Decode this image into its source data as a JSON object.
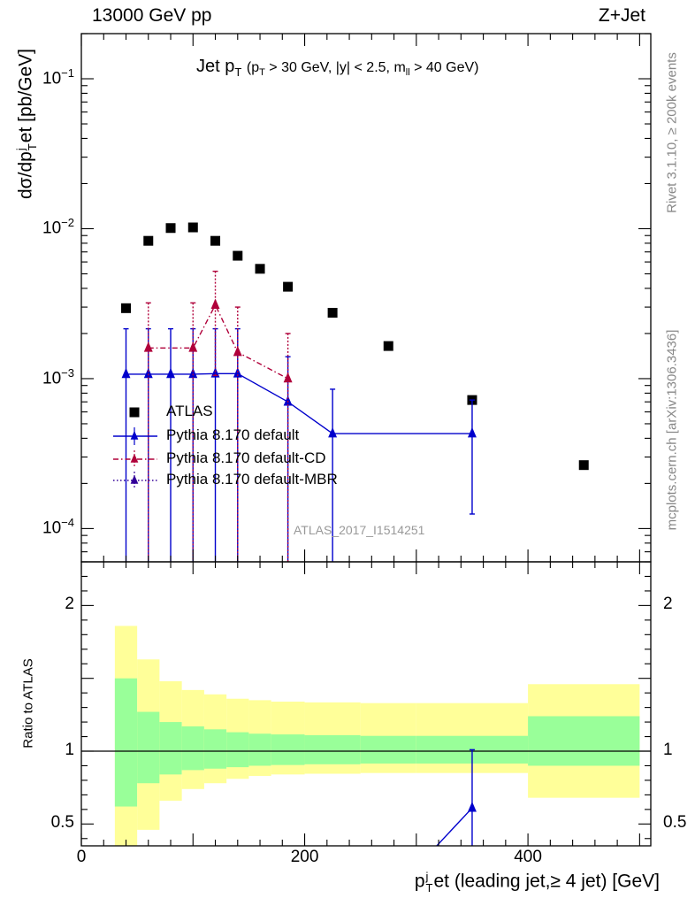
{
  "header": {
    "left": "13000 GeV pp",
    "right": "Z+Jet"
  },
  "side_labels": {
    "rivet": "Rivet 3.1.10, ≥ 200k events",
    "mcplots": "mcplots.cern.ch [arXiv:1306.3436]"
  },
  "plot_title": {
    "main": "Jet p",
    "main_sub": "T",
    "cuts_open": "(p",
    "cuts_sub1": "T",
    "cuts_mid": " > 30 GeV, |y| < 2.5, m",
    "cuts_sub2": "ll",
    "cuts_close": " > 40 GeV)"
  },
  "watermark": "ATLAS_2017_I1514251",
  "colors": {
    "data": "#000000",
    "default": "#0000cc",
    "default_cd": "#b0003a",
    "default_mbr": "#330099",
    "band_inner": "#99ff99",
    "band_outer": "#ffff99"
  },
  "chart_data": [
    {
      "type": "scatter",
      "panel": "main",
      "yscale": "log",
      "ylim": [
        6e-05,
        0.2
      ],
      "xlim": [
        0,
        510
      ],
      "ylabel": "dσ/dp",
      "ylabel_sub": "T",
      "ylabel_sup": "j",
      "ylabel_rest": "et [pb/GeV]",
      "ytick_labels": [
        {
          "base": "10",
          "exp": "−1",
          "value": 0.1
        },
        {
          "base": "10",
          "exp": "−2",
          "value": 0.01
        },
        {
          "base": "10",
          "exp": "−3",
          "value": 0.001
        },
        {
          "base": "10",
          "exp": "−4",
          "value": 0.0001
        }
      ],
      "legend_position": "middle-left",
      "series": [
        {
          "name": "ATLAS",
          "marker": "square",
          "x": [
            40,
            60,
            80,
            100,
            120,
            140,
            160,
            185,
            225,
            275,
            350,
            450
          ],
          "y": [
            0.00295,
            0.0083,
            0.0101,
            0.0102,
            0.0083,
            0.0066,
            0.0054,
            0.0041,
            0.00275,
            0.00165,
            0.00072,
            0.000265
          ]
        },
        {
          "name": "Pythia 8.170 default",
          "marker": "triangle",
          "line": "solid",
          "x": [
            40,
            60,
            80,
            100,
            120,
            140,
            185,
            225,
            350
          ],
          "y": [
            0.00107,
            0.00107,
            0.00107,
            0.00107,
            0.00108,
            0.00108,
            0.0007,
            0.00043,
            0.00043
          ],
          "yerr_high": [
            0.00215,
            0.00215,
            0.00215,
            0.00215,
            0.00215,
            0.00215,
            0.0014,
            0.00085,
            0.00072
          ],
          "yerr_low": [
            1e-05,
            1e-05,
            1e-05,
            1e-05,
            1e-05,
            1e-05,
            1e-05,
            1e-05,
            0.000125
          ]
        },
        {
          "name": "Pythia 8.170 default-CD",
          "marker": "triangle",
          "line": "dashdot",
          "x": [
            60,
            100,
            120,
            140,
            185
          ],
          "y": [
            0.0016,
            0.0016,
            0.0031,
            0.0015,
            0.001
          ],
          "yerr_high": [
            0.0032,
            0.0032,
            0.0052,
            0.003,
            0.002
          ],
          "yerr_low": [
            1e-05,
            1e-05,
            0.00105,
            1e-05,
            1e-05
          ]
        },
        {
          "name": "Pythia 8.170 default-MBR",
          "marker": "triangle",
          "line": "dotted",
          "x": [],
          "y": []
        }
      ]
    },
    {
      "type": "area",
      "panel": "ratio",
      "ylabel": "Ratio to ATLAS",
      "ylim": [
        0.35,
        2.3
      ],
      "xlim": [
        0,
        510
      ],
      "xlabel_main": "p",
      "xlabel_sub": "T",
      "xlabel_sup": "j",
      "xlabel_rest": "et (leading jet,≥ 4 jet) [GeV]",
      "xtick_labels": [
        {
          "label": "0",
          "value": 0
        },
        {
          "label": "200",
          "value": 200
        },
        {
          "label": "400",
          "value": 400
        }
      ],
      "ytick_labels": [
        {
          "label": "0.5",
          "value": 0.5
        },
        {
          "label": "1",
          "value": 1
        },
        {
          "label": "2",
          "value": 2
        }
      ],
      "bins": [
        30,
        50,
        70,
        90,
        110,
        130,
        150,
        170,
        200,
        250,
        300,
        400,
        500
      ],
      "inner_low": [
        0.62,
        0.78,
        0.84,
        0.87,
        0.88,
        0.89,
        0.9,
        0.905,
        0.91,
        0.915,
        0.915,
        0.9
      ],
      "inner_high": [
        1.5,
        1.27,
        1.2,
        1.17,
        1.15,
        1.13,
        1.12,
        1.115,
        1.11,
        1.105,
        1.105,
        1.24
      ],
      "outer_low": [
        0.3,
        0.46,
        0.66,
        0.74,
        0.78,
        0.81,
        0.83,
        0.84,
        0.845,
        0.85,
        0.85,
        0.68
      ],
      "outer_high": [
        1.86,
        1.63,
        1.48,
        1.42,
        1.39,
        1.36,
        1.35,
        1.34,
        1.335,
        1.33,
        1.33,
        1.46
      ],
      "series": [
        {
          "name": "Pythia 8.170 default",
          "x": [
            300,
            350
          ],
          "y": [
            0.2,
            0.61
          ],
          "yerr_high": [
            1.01,
            1.01
          ],
          "yerr_low": [
            0.2,
            0.2
          ]
        }
      ]
    }
  ]
}
